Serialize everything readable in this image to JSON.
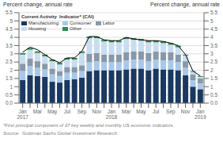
{
  "chart_data": {
    "type": "bar",
    "stacked": true,
    "ylabel": "Percent change, annual rate",
    "y2label": "Percent change, annual rate",
    "legend_title": "Current Activity  Indicator* (CAI)",
    "annotations": [
      "*First principal component of 37 key weekly and monthly US economic indicators.",
      "Source:  Goldman Sachs Global Investment Research"
    ],
    "categories": [
      "Jan\n2017",
      null,
      "Mar",
      null,
      "May",
      null,
      "Jul",
      null,
      "Sep",
      null,
      "Nov",
      null,
      "Jan\n2018",
      null,
      "Mar",
      null,
      "May",
      null,
      "Jul",
      null,
      "Sep",
      null,
      "Nov",
      null,
      "Jan\n2019"
    ],
    "series": [
      {
        "name": "Manufacturing",
        "color": "#1a3860",
        "values": [
          1.4,
          1.7,
          1.65,
          1.6,
          1.3,
          1.25,
          1.4,
          1.45,
          1.55,
          1.95,
          2.0,
          2.0,
          2.0,
          2.0,
          2.05,
          2.1,
          2.1,
          2.0,
          2.1,
          2.05,
          2.05,
          2.0,
          1.7,
          1.0,
          0.85
        ]
      },
      {
        "name": "Consumer",
        "color": "#a8c8e8",
        "values": [
          0.55,
          0.55,
          0.5,
          0.45,
          0.45,
          0.4,
          0.45,
          0.4,
          0.4,
          0.55,
          0.55,
          0.5,
          0.5,
          0.5,
          0.55,
          0.55,
          0.55,
          0.55,
          0.55,
          0.55,
          0.55,
          0.5,
          0.45,
          0.4,
          0.35
        ]
      },
      {
        "name": "Labor",
        "color": "#8898a8",
        "values": [
          0.45,
          0.45,
          0.4,
          0.35,
          0.35,
          0.3,
          0.35,
          0.35,
          0.35,
          0.5,
          0.5,
          0.45,
          0.45,
          0.45,
          0.5,
          0.5,
          0.5,
          0.5,
          0.5,
          0.5,
          0.5,
          0.45,
          0.4,
          0.35,
          0.3
        ]
      },
      {
        "name": "Housing",
        "color": "#c8ddf0",
        "values": [
          0.55,
          0.55,
          0.5,
          0.45,
          0.45,
          0.4,
          0.45,
          0.45,
          0.75,
          0.95,
          0.9,
          0.8,
          0.75,
          0.75,
          0.8,
          0.7,
          0.65,
          0.65,
          0.55,
          0.55,
          0.45,
          0.45,
          0.35,
          0.15,
          0.1
        ]
      },
      {
        "name": "Other",
        "color": "#2d8a4e",
        "values": [
          0.1,
          0.1,
          0.1,
          0.1,
          0.1,
          0.1,
          0.1,
          0.1,
          0.1,
          0.1,
          0.1,
          0.1,
          0.1,
          0.1,
          0.1,
          0.1,
          0.1,
          0.1,
          0.1,
          0.1,
          0.1,
          0.1,
          0.05,
          0.05,
          0.05
        ]
      },
      {
        "type": "line",
        "color": "#000000",
        "values": [
          3.1,
          3.4,
          3.25,
          2.95,
          2.65,
          2.45,
          2.75,
          2.75,
          3.15,
          4.05,
          4.05,
          3.85,
          3.8,
          3.8,
          4.0,
          3.9,
          3.85,
          3.8,
          3.8,
          3.75,
          3.65,
          3.5,
          2.95,
          1.95,
          1.65
        ]
      }
    ],
    "ylim": [
      0,
      5.5
    ],
    "yticks": [
      {
        "value": 0,
        "label": "0.0"
      },
      0.5,
      1,
      1.5,
      2,
      2.5,
      3,
      3.5,
      4,
      4.5,
      5,
      5.5
    ],
    "y2lim": [
      0,
      5.5
    ],
    "y2ticks": [
      {
        "value": 0,
        "label": "0.0"
      },
      0.5,
      1,
      1.5,
      2,
      2.5,
      3,
      3.5,
      4,
      4.5,
      5,
      5.5
    ],
    "grid": true,
    "legend": "upper left"
  }
}
